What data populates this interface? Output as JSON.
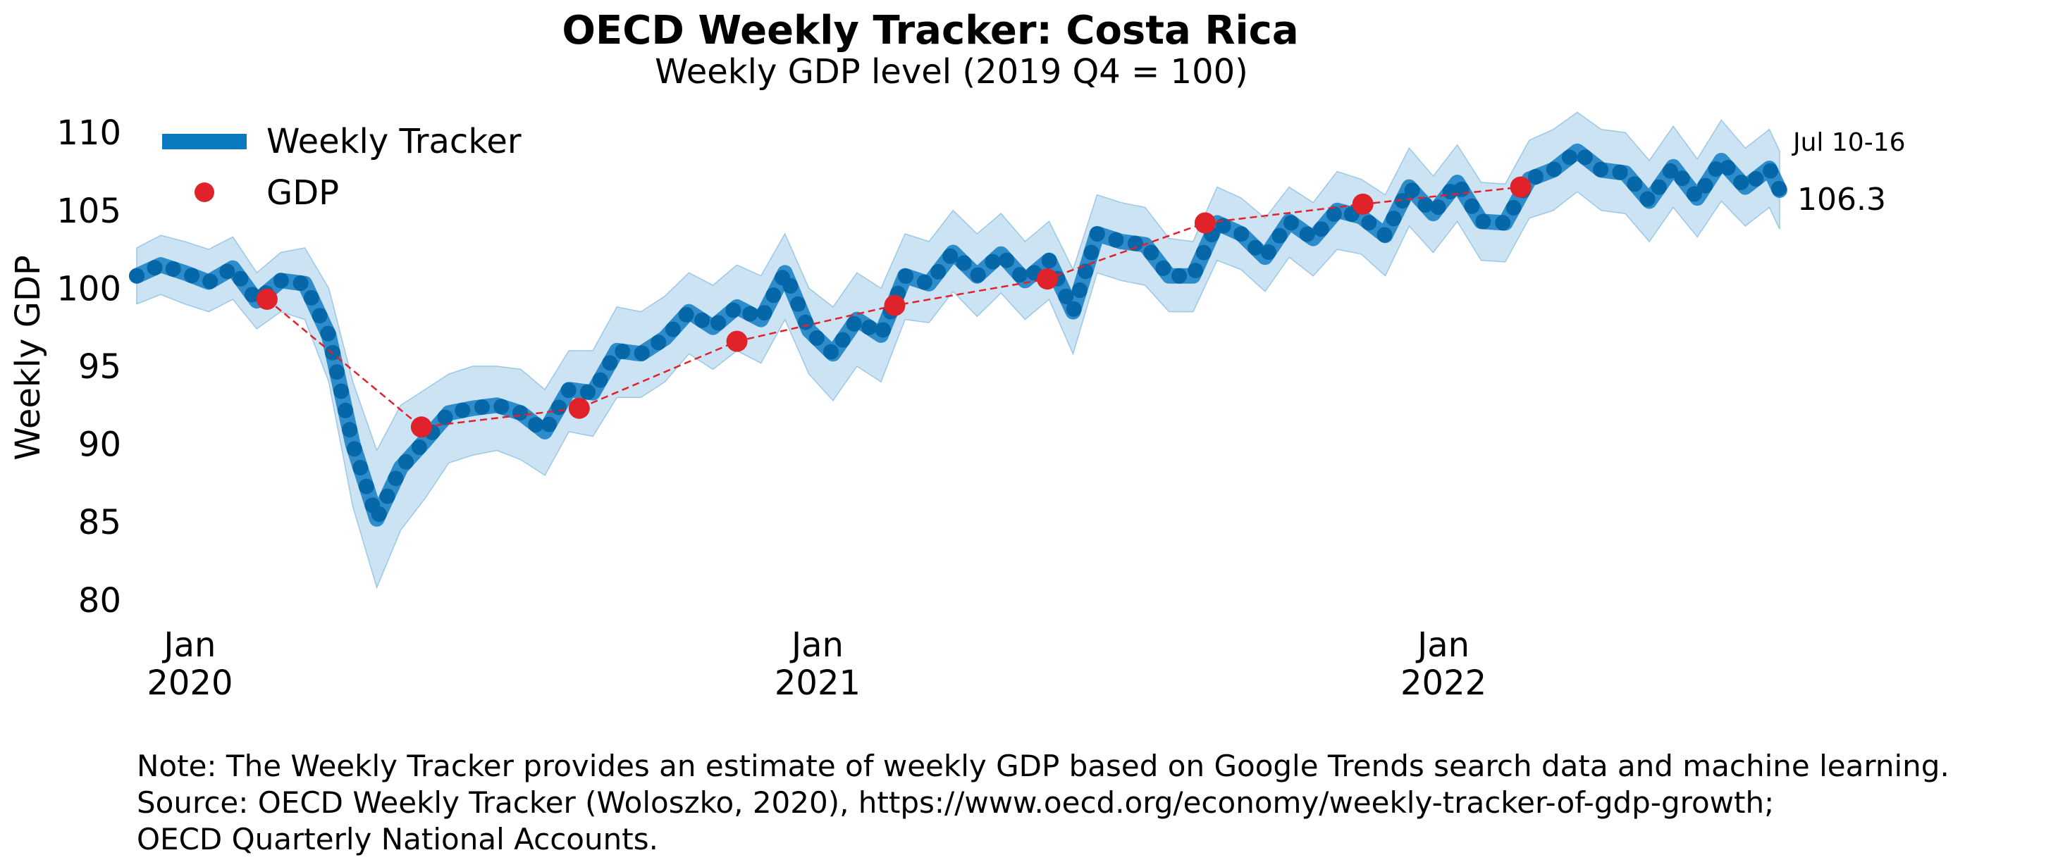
{
  "colors": {
    "tracker": "#0a79c0",
    "band": "#b7d7ee",
    "gdp": "#e0222b"
  },
  "notes": {
    "line1": "Note: The Weekly Tracker provides an estimate of weekly GDP based on Google Trends search data and machine learning.",
    "line2": "Source: OECD Weekly Tracker (Woloszko, 2020), https://www.oecd.org/economy/weekly-tracker-of-gdp-growth;",
    "line3": "OECD Quarterly National Accounts."
  },
  "chart_data": {
    "type": "line",
    "title": "OECD Weekly Tracker: Costa Rica",
    "subtitle": "Weekly GDP level (2019 Q4 = 100)",
    "ylabel": "Weekly GDP",
    "xlabel": "",
    "ylim": [
      78.5,
      111.5
    ],
    "xlim": [
      "2019-12-01",
      "2022-07-16"
    ],
    "yticks": [
      80,
      85,
      90,
      95,
      100,
      105,
      110
    ],
    "xticks": [
      {
        "date": "2020-01-01",
        "line1": "Jan",
        "line2": "2020"
      },
      {
        "date": "2021-01-01",
        "line1": "Jan",
        "line2": "2021"
      },
      {
        "date": "2022-01-01",
        "line1": "Jan",
        "line2": "2022"
      }
    ],
    "grid": false,
    "legend": {
      "position": "top-left",
      "entries": [
        "Weekly Tracker",
        "GDP"
      ]
    },
    "annotation": {
      "period": "Jul 10-16",
      "value": "106.3"
    },
    "series": [
      {
        "name": "Weekly Tracker",
        "kind": "line_with_band",
        "points": [
          [
            "2019-12-01",
            100.8,
            99.0,
            102.6
          ],
          [
            "2019-12-15",
            101.5,
            99.6,
            103.4
          ],
          [
            "2019-12-29",
            101.0,
            99.0,
            103.0
          ],
          [
            "2020-01-12",
            100.4,
            98.5,
            102.5
          ],
          [
            "2020-01-26",
            101.3,
            99.3,
            103.3
          ],
          [
            "2020-02-09",
            99.2,
            97.4,
            101.0
          ],
          [
            "2020-02-23",
            100.5,
            98.5,
            102.3
          ],
          [
            "2020-03-08",
            100.3,
            98.0,
            102.6
          ],
          [
            "2020-03-22",
            97.0,
            94.0,
            100.0
          ],
          [
            "2020-04-05",
            90.0,
            86.0,
            94.0
          ],
          [
            "2020-04-19",
            85.2,
            80.8,
            89.6
          ],
          [
            "2020-05-03",
            88.5,
            84.5,
            92.5
          ],
          [
            "2020-05-17",
            90.2,
            86.5,
            93.5
          ],
          [
            "2020-05-31",
            92.0,
            88.8,
            94.5
          ],
          [
            "2020-06-14",
            92.3,
            89.3,
            95.0
          ],
          [
            "2020-06-28",
            92.5,
            89.6,
            95.0
          ],
          [
            "2020-07-12",
            92.0,
            89.0,
            94.8
          ],
          [
            "2020-07-26",
            90.8,
            88.0,
            93.5
          ],
          [
            "2020-08-09",
            93.5,
            90.8,
            96.0
          ],
          [
            "2020-08-23",
            93.3,
            90.5,
            96.0
          ],
          [
            "2020-09-06",
            96.0,
            93.0,
            98.8
          ],
          [
            "2020-09-20",
            95.8,
            93.0,
            98.5
          ],
          [
            "2020-10-04",
            96.8,
            94.0,
            99.5
          ],
          [
            "2020-10-18",
            98.5,
            95.8,
            101.0
          ],
          [
            "2020-11-01",
            97.5,
            94.8,
            100.2
          ],
          [
            "2020-11-15",
            98.8,
            96.0,
            101.5
          ],
          [
            "2020-11-29",
            98.0,
            95.2,
            100.8
          ],
          [
            "2020-12-13",
            101.0,
            98.0,
            103.5
          ],
          [
            "2020-12-27",
            97.3,
            94.5,
            100.0
          ],
          [
            "2021-01-10",
            95.8,
            92.8,
            98.8
          ],
          [
            "2021-01-24",
            98.0,
            95.0,
            101.0
          ],
          [
            "2021-02-07",
            97.0,
            94.0,
            100.0
          ],
          [
            "2021-02-21",
            100.8,
            98.0,
            103.5
          ],
          [
            "2021-03-07",
            100.3,
            97.8,
            103.0
          ],
          [
            "2021-03-21",
            102.3,
            99.8,
            105.0
          ],
          [
            "2021-04-04",
            100.8,
            98.2,
            103.5
          ],
          [
            "2021-04-18",
            102.2,
            99.7,
            104.8
          ],
          [
            "2021-05-02",
            100.5,
            98.0,
            103.0
          ],
          [
            "2021-05-16",
            101.8,
            99.3,
            104.3
          ],
          [
            "2021-05-30",
            98.5,
            95.8,
            101.2
          ],
          [
            "2021-06-13",
            103.5,
            101.0,
            106.0
          ],
          [
            "2021-06-27",
            103.0,
            100.5,
            105.5
          ],
          [
            "2021-07-11",
            102.8,
            100.2,
            105.2
          ],
          [
            "2021-07-25",
            100.8,
            98.5,
            103.2
          ],
          [
            "2021-08-08",
            100.8,
            98.5,
            103.0
          ],
          [
            "2021-08-22",
            104.2,
            101.8,
            106.5
          ],
          [
            "2021-09-05",
            103.5,
            101.2,
            105.8
          ],
          [
            "2021-09-19",
            102.0,
            99.8,
            104.5
          ],
          [
            "2021-10-03",
            104.3,
            102.0,
            106.5
          ],
          [
            "2021-10-17",
            103.2,
            100.8,
            105.5
          ],
          [
            "2021-10-31",
            105.0,
            102.5,
            107.5
          ],
          [
            "2021-11-14",
            104.6,
            102.2,
            107.0
          ],
          [
            "2021-11-28",
            103.4,
            100.8,
            106.0
          ],
          [
            "2021-12-12",
            106.5,
            104.0,
            109.0
          ],
          [
            "2021-12-26",
            104.8,
            102.3,
            107.2
          ],
          [
            "2022-01-09",
            106.8,
            104.3,
            109.2
          ],
          [
            "2022-01-23",
            104.3,
            101.8,
            106.8
          ],
          [
            "2022-02-06",
            104.2,
            101.7,
            106.7
          ],
          [
            "2022-02-20",
            107.0,
            104.5,
            109.5
          ],
          [
            "2022-03-06",
            107.6,
            105.0,
            110.2
          ],
          [
            "2022-03-20",
            108.8,
            106.2,
            111.3
          ],
          [
            "2022-04-03",
            107.6,
            105.0,
            110.2
          ],
          [
            "2022-04-17",
            107.4,
            104.8,
            110.0
          ],
          [
            "2022-05-01",
            105.6,
            103.0,
            108.2
          ],
          [
            "2022-05-15",
            107.8,
            105.2,
            110.4
          ],
          [
            "2022-05-29",
            105.8,
            103.3,
            108.3
          ],
          [
            "2022-06-12",
            108.2,
            105.6,
            110.8
          ],
          [
            "2022-06-26",
            106.5,
            104.0,
            109.0
          ],
          [
            "2022-07-10",
            107.7,
            105.2,
            110.2
          ],
          [
            "2022-07-16",
            106.3,
            103.8,
            108.8
          ]
        ]
      },
      {
        "name": "GDP",
        "kind": "points_dashed",
        "points": [
          [
            "2020-02-15",
            99.3
          ],
          [
            "2020-05-15",
            91.1
          ],
          [
            "2020-08-15",
            92.3
          ],
          [
            "2020-11-15",
            96.6
          ],
          [
            "2021-02-15",
            98.9
          ],
          [
            "2021-05-15",
            100.6
          ],
          [
            "2021-08-15",
            104.2
          ],
          [
            "2021-11-15",
            105.4
          ],
          [
            "2022-02-15",
            106.5
          ]
        ]
      }
    ]
  }
}
